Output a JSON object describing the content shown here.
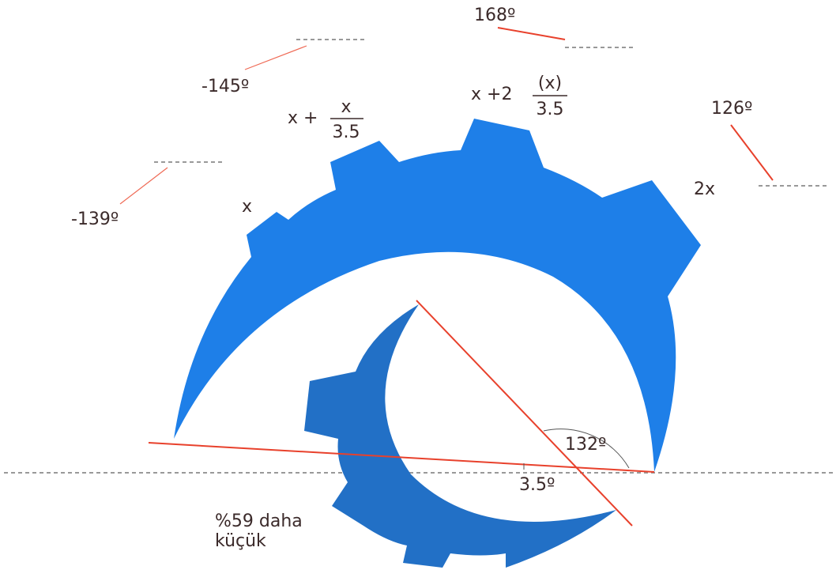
{
  "angles": [
    "168º",
    "-145º",
    "126º",
    "-139º",
    "132º",
    "3.5º"
  ],
  "teeth": [
    {
      "text": "x"
    },
    {
      "text": "x +",
      "numerator": "x",
      "denominator": "3.5"
    },
    {
      "text": "x +2",
      "numerator": "(x)",
      "denominator": "3.5"
    },
    {
      "text": "2x"
    }
  ],
  "note": [
    "%59 daha",
    "küçük"
  ]
}
